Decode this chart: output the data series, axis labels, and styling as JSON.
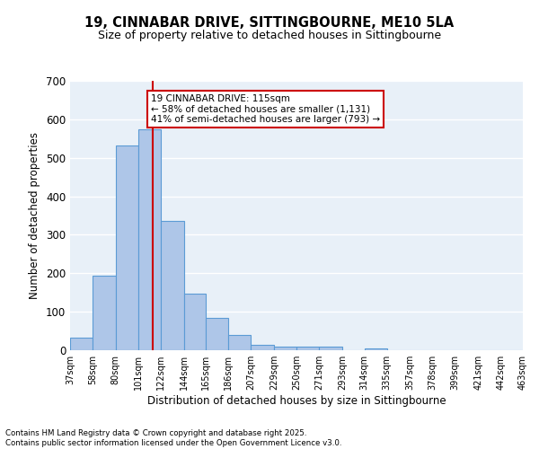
{
  "title1": "19, CINNABAR DRIVE, SITTINGBOURNE, ME10 5LA",
  "title2": "Size of property relative to detached houses in Sittingbourne",
  "xlabel": "Distribution of detached houses by size in Sittingbourne",
  "ylabel": "Number of detached properties",
  "bar_values": [
    32,
    193,
    533,
    575,
    337,
    147,
    85,
    40,
    14,
    10,
    10,
    10,
    0,
    5,
    0,
    0,
    0,
    0,
    0,
    0
  ],
  "bin_labels": [
    "37sqm",
    "58sqm",
    "80sqm",
    "101sqm",
    "122sqm",
    "144sqm",
    "165sqm",
    "186sqm",
    "207sqm",
    "229sqm",
    "250sqm",
    "271sqm",
    "293sqm",
    "314sqm",
    "335sqm",
    "357sqm",
    "378sqm",
    "399sqm",
    "421sqm",
    "442sqm",
    "463sqm"
  ],
  "bar_color": "#aec6e8",
  "bar_edge_color": "#5b9bd5",
  "vline_x": 115,
  "vline_color": "#cc0000",
  "annotation_text": "19 CINNABAR DRIVE: 115sqm\n← 58% of detached houses are smaller (1,131)\n41% of semi-detached houses are larger (793) →",
  "annotation_box_color": "white",
  "annotation_box_edge_color": "#cc0000",
  "ylim": [
    0,
    700
  ],
  "yticks": [
    0,
    100,
    200,
    300,
    400,
    500,
    600,
    700
  ],
  "background_color": "#e8f0f8",
  "grid_color": "white",
  "footer_text": "Contains HM Land Registry data © Crown copyright and database right 2025.\nContains public sector information licensed under the Open Government Licence v3.0.",
  "bin_edges": [
    37,
    58,
    80,
    101,
    122,
    144,
    165,
    186,
    207,
    229,
    250,
    271,
    293,
    314,
    335,
    357,
    378,
    399,
    421,
    442,
    463
  ]
}
